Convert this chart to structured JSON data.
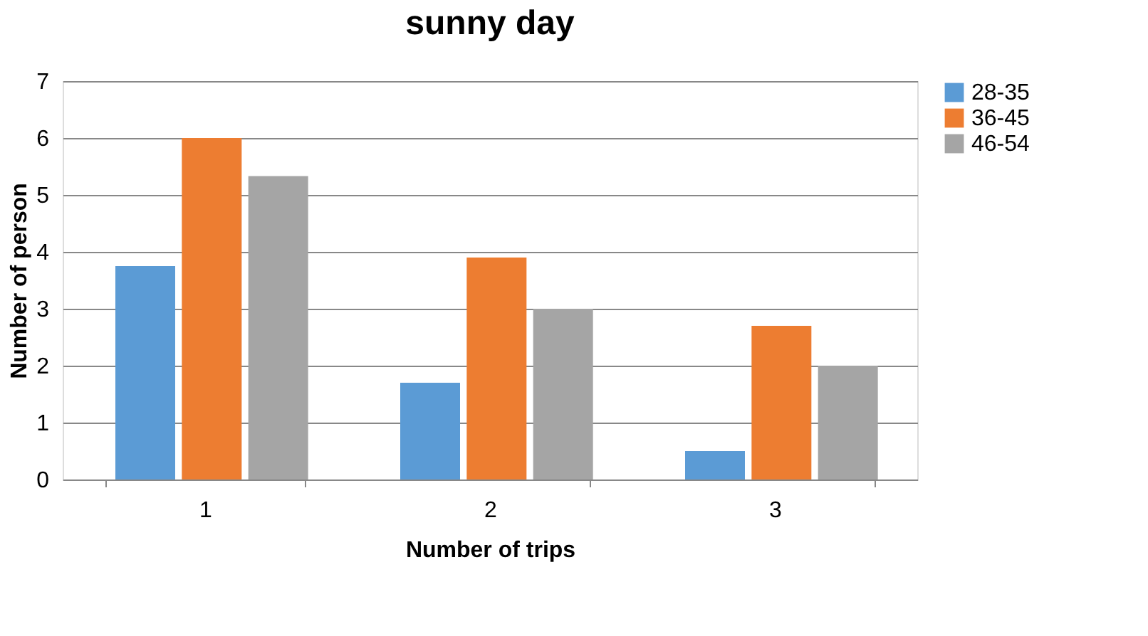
{
  "chart_data": {
    "type": "bar",
    "title": "sunny day",
    "xlabel": "Number of trips",
    "ylabel": "Number of person",
    "categories": [
      "1",
      "2",
      "3"
    ],
    "series": [
      {
        "name": "28-35",
        "color": "#5b9bd5",
        "values": [
          3.75,
          1.7,
          0.5
        ]
      },
      {
        "name": "36-45",
        "color": "#ed7d31",
        "values": [
          6,
          3.9,
          2.7
        ]
      },
      {
        "name": "46-54",
        "color": "#a5a5a5",
        "values": [
          5.33,
          3,
          2
        ]
      }
    ],
    "ylim": [
      0,
      7
    ],
    "yticks": [
      0,
      1,
      2,
      3,
      4,
      5,
      6,
      7
    ],
    "grid": "y",
    "legend": "right"
  }
}
